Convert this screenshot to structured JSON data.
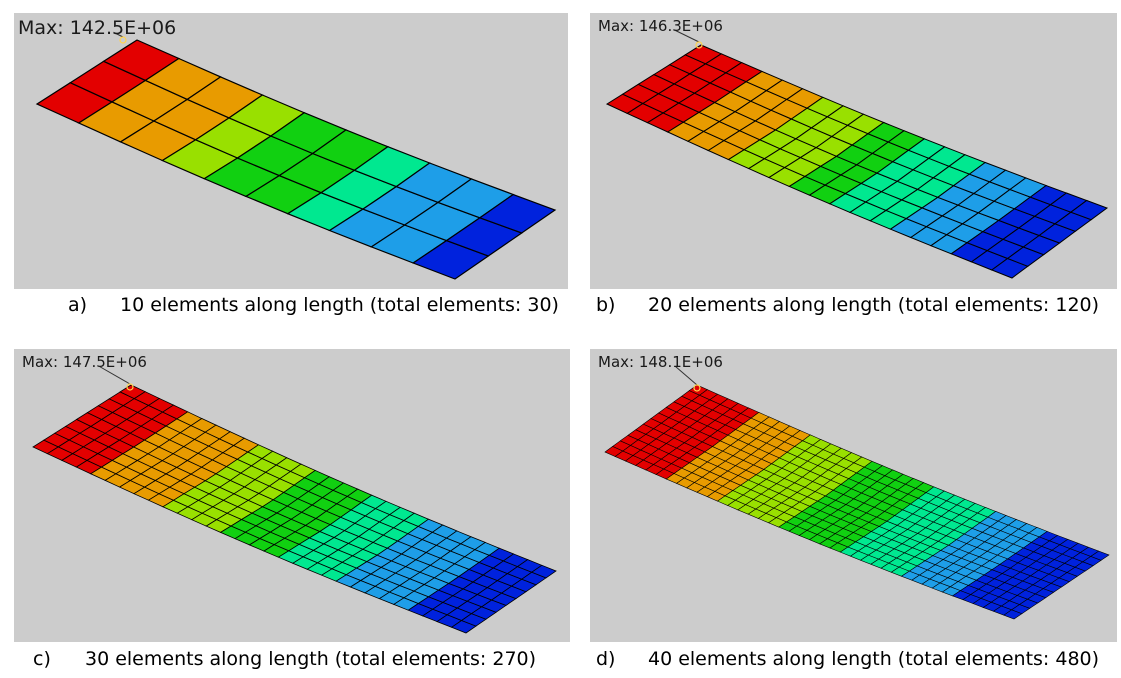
{
  "colors": {
    "background": "#cccccc",
    "contour_bands": [
      "#e30000",
      "#e89b00",
      "#99e000",
      "#11d011",
      "#00e890",
      "#1e9ee8",
      "#0022dd"
    ],
    "mesh_lines": "#000000"
  },
  "panels": [
    {
      "id": "a",
      "max_label": "Max: 142.5E+06",
      "letter": "a)",
      "caption": "10 elements along length (total elements: 30)",
      "elements_along_length": 10,
      "elements_across_width": 3
    },
    {
      "id": "b",
      "max_label": "Max: 146.3E+06",
      "letter": "b)",
      "caption": "20 elements along length (total elements: 120)",
      "elements_along_length": 20,
      "elements_across_width": 6
    },
    {
      "id": "c",
      "max_label": "Max: 147.5E+06",
      "letter": "c)",
      "caption": "30 elements along length (total elements: 270)",
      "elements_along_length": 30,
      "elements_across_width": 9
    },
    {
      "id": "d",
      "max_label": "Max: 148.1E+06",
      "letter": "d)",
      "caption": "40 elements along length (total elements: 480)",
      "elements_along_length": 40,
      "elements_across_width": 12
    }
  ]
}
